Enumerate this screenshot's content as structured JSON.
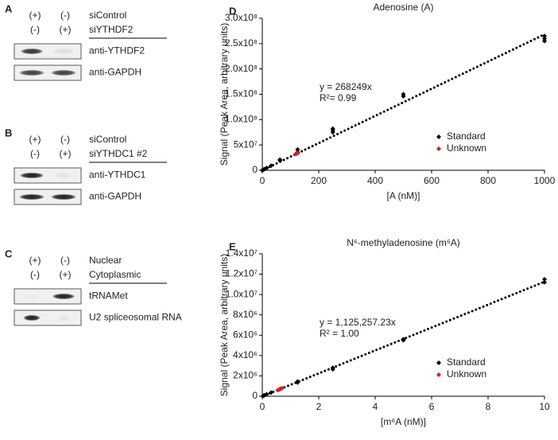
{
  "panels": [
    {
      "letter": "A",
      "conditions": [
        {
          "lanes": [
            "(+)",
            "(-)"
          ],
          "label": "siControl"
        },
        {
          "lanes": [
            "(-)",
            "(+)"
          ],
          "label": "siYTHDF2"
        }
      ],
      "blots": [
        "anti-YTHDF2",
        "anti-GAPDH"
      ]
    },
    {
      "letter": "B",
      "conditions": [
        {
          "lanes": [
            "(+)",
            "(-)"
          ],
          "label": "siControl"
        },
        {
          "lanes": [
            "(-)",
            "(+)"
          ],
          "label": "siYTHDC1 #2"
        }
      ],
      "blots": [
        "anti-YTHDC1",
        "anti-GAPDH"
      ]
    },
    {
      "letter": "C",
      "conditions": [
        {
          "lanes": [
            "(+)",
            "(-)"
          ],
          "label": "Nuclear"
        },
        {
          "lanes": [
            "(-)",
            "(+)"
          ],
          "label": "Cytoplasmic"
        }
      ],
      "blots": [
        "tRNAMet",
        "U2 spliceosomal RNA"
      ]
    }
  ],
  "chart_data": [
    {
      "type": "scatter",
      "panel": "D",
      "title": "Adenosine (A)",
      "x_label": "[A (nM)]",
      "y_label": "Signal (Peak Area, arbitrary units)",
      "xlim": [
        0,
        1000
      ],
      "xticks": [
        0,
        200,
        400,
        600,
        800,
        1000
      ],
      "ylim": [
        0,
        300000000
      ],
      "yticks": [
        0,
        {
          "value": 50000000,
          "label": "5x10⁷"
        },
        {
          "value": 100000000,
          "label": "1.0x10⁸"
        },
        {
          "value": 150000000,
          "label": "1.5x10⁸"
        },
        {
          "value": 200000000,
          "label": "2.0x10⁸"
        },
        {
          "value": 250000000,
          "label": "2.5x10⁸"
        },
        {
          "value": 300000000,
          "label": "3.0x10⁸"
        }
      ],
      "series": [
        {
          "name": "Standard",
          "color": "#000000",
          "x": [
            0,
            3.9,
            7.8,
            15.6,
            31.25,
            62.5,
            62.5,
            125,
            125,
            250,
            250,
            250,
            500,
            500,
            1000,
            1000,
            1000
          ],
          "values": [
            0,
            1200000,
            2300000,
            4500000,
            9000000,
            19000000,
            21000000,
            36000000,
            41000000,
            75000000,
            79000000,
            82000000,
            146000000,
            150000000,
            255000000,
            260000000,
            265000000
          ]
        },
        {
          "name": "Unknown",
          "color": "#d62020",
          "x": [
            118,
            122,
            126
          ],
          "values": [
            32000000,
            33000000,
            34000000
          ]
        }
      ],
      "trendline": {
        "slope": 268249,
        "label": "y = 268249x"
      },
      "annotations": [
        "R²= 0.99"
      ],
      "legend": "lower right"
    },
    {
      "type": "scatter",
      "panel": "E",
      "title": "N⁶-methyladenosine (m⁶A)",
      "x_label": "[m⁶A (nM)]",
      "y_label": "Signal (Peak Area, arbitrary units)",
      "xlim": [
        0,
        10
      ],
      "xticks": [
        0,
        2,
        4,
        6,
        8,
        10
      ],
      "ylim": [
        0,
        14000000
      ],
      "yticks": [
        0,
        {
          "value": 2000000,
          "label": "2x10⁶"
        },
        {
          "value": 4000000,
          "label": "4x10⁶"
        },
        {
          "value": 6000000,
          "label": "6x10⁶"
        },
        {
          "value": 8000000,
          "label": "8x10⁶"
        },
        {
          "value": 10000000,
          "label": "1.0x10⁷"
        },
        {
          "value": 12000000,
          "label": "1.2x10⁷"
        },
        {
          "value": 14000000,
          "label": "1.4x10⁷"
        }
      ],
      "series": [
        {
          "name": "Standard",
          "color": "#000000",
          "x": [
            0.039,
            0.078,
            0.156,
            0.3125,
            0.625,
            1.25,
            1.25,
            2.5,
            2.5,
            5,
            5,
            10,
            10
          ],
          "values": [
            50000,
            100000,
            200000,
            360000,
            700000,
            1350000,
            1450000,
            2650000,
            2800000,
            5500000,
            5600000,
            11200000,
            11500000
          ]
        },
        {
          "name": "Unknown",
          "color": "#d62020",
          "x": [
            0.55,
            0.6,
            0.65,
            0.7
          ],
          "values": [
            600000,
            660000,
            720000,
            780000
          ]
        }
      ],
      "trendline": {
        "slope": 1125257.23,
        "label": "y = 1,125,257.23x"
      },
      "annotations": [
        "R² = 1.00"
      ],
      "legend": "lower right"
    }
  ]
}
